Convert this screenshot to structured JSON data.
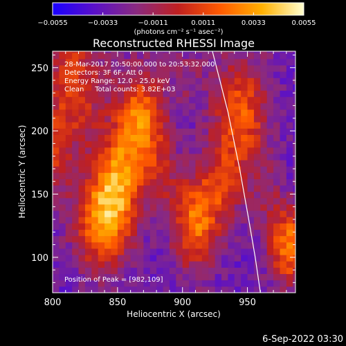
{
  "chart_data": {
    "type": "heatmap",
    "title": "Reconstructed RHESSI Image",
    "xlabel": "Heliocentric X (arcsec)",
    "ylabel": "Heliocentric Y (arcsec)",
    "xlim": [
      800,
      987
    ],
    "ylim": [
      72,
      263
    ],
    "xticks": [
      "800",
      "850",
      "900",
      "950"
    ],
    "xtick_values": [
      800,
      850,
      900,
      950
    ],
    "yticks": [
      "100",
      "150",
      "200",
      "250"
    ],
    "ytick_values": [
      100,
      150,
      200,
      250
    ],
    "colorbar": {
      "range": [
        -0.0055,
        0.0055
      ],
      "tick_labels": [
        "−0.0055",
        "−0.0033",
        "−0.0011",
        "0.0011",
        "0.0033",
        "0.0055"
      ],
      "tick_values": [
        -0.0055,
        -0.0033,
        -0.0011,
        0.0011,
        0.0033,
        0.0055
      ],
      "label": "(photons cm⁻² s⁻¹ asec⁻²)",
      "colors": [
        "#1a00ff",
        "#5a10c8",
        "#8a2a80",
        "#c02020",
        "#ff5a00",
        "#ffb000",
        "#ffffd0"
      ]
    },
    "annotations": [
      "28-Mar-2017 20:50:00.000 to 20:53:32.000",
      "Detectors: 3F 6F, Att 0",
      "Energy Range: 12.0 - 25.0 keV",
      "Clean     Total counts: 3.82E+03"
    ],
    "peak_label": "Position of Peak = [982,109]",
    "peak_position": [
      982,
      109
    ],
    "limb_curve": [
      [
        923,
        263
      ],
      [
        935,
        215
      ],
      [
        944,
        170
      ],
      [
        951,
        130
      ],
      [
        956,
        100
      ],
      [
        960,
        72
      ]
    ],
    "blobs": [
      {
        "x": 816,
        "y": 236,
        "sx": 16,
        "sy": 34,
        "amp": 0.004
      },
      {
        "x": 868,
        "y": 206,
        "sx": 14,
        "sy": 30,
        "amp": 0.0055
      },
      {
        "x": 849,
        "y": 158,
        "sx": 13,
        "sy": 28,
        "amp": 0.0048
      },
      {
        "x": 837,
        "y": 126,
        "sx": 15,
        "sy": 26,
        "amp": 0.005
      },
      {
        "x": 910,
        "y": 127,
        "sx": 12,
        "sy": 26,
        "amp": 0.0052
      },
      {
        "x": 945,
        "y": 212,
        "sx": 15,
        "sy": 33,
        "amp": 0.0046
      },
      {
        "x": 930,
        "y": 157,
        "sx": 11,
        "sy": 22,
        "amp": 0.003
      },
      {
        "x": 982,
        "y": 109,
        "sx": 11,
        "sy": 22,
        "amp": 0.0055
      },
      {
        "x": 800,
        "y": 178,
        "sx": 10,
        "sy": 24,
        "amp": 0.0028
      },
      {
        "x": 885,
        "y": 160,
        "sx": 10,
        "sy": 20,
        "amp": 0.0016
      },
      {
        "x": 905,
        "y": 245,
        "sx": 10,
        "sy": 18,
        "amp": 0.0014
      },
      {
        "x": 965,
        "y": 150,
        "sx": 8,
        "sy": 18,
        "amp": 0.0015
      }
    ]
  },
  "footer": {
    "date_stamp": "6-Sep-2022 03:30"
  }
}
